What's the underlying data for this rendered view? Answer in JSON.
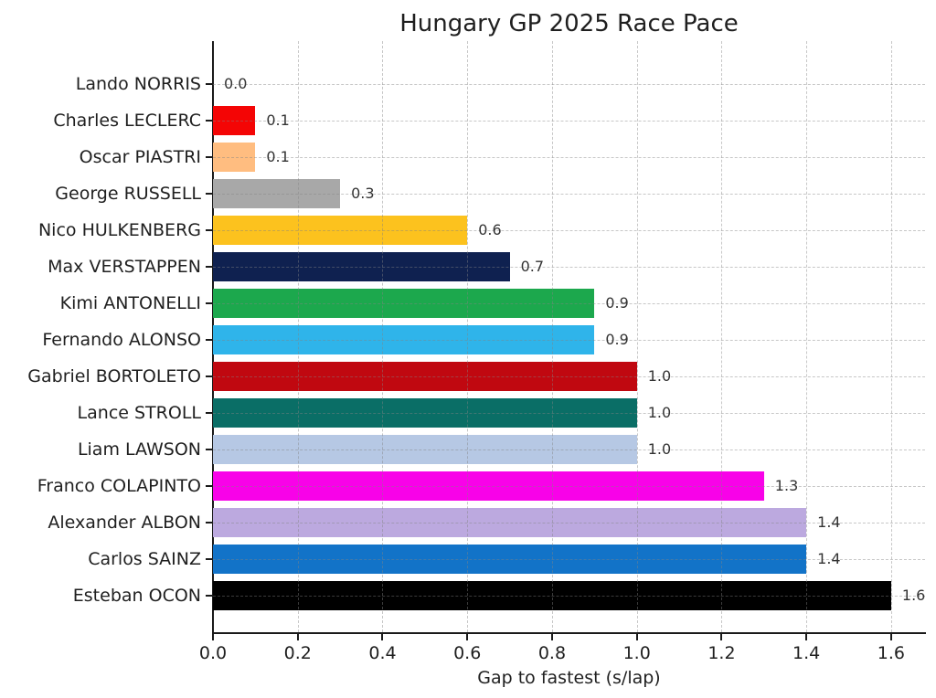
{
  "chart": {
    "title": "Hungary GP 2025 Race Pace",
    "xlabel": "Gap to fastest (s/lap)"
  },
  "chart_data": {
    "type": "bar",
    "orientation": "horizontal",
    "title": "Hungary GP 2025 Race Pace",
    "xlabel": "Gap to fastest (s/lap)",
    "ylabel": "",
    "xlim": [
      0,
      1.68
    ],
    "xticks": [
      0,
      0.2,
      0.4,
      0.6,
      0.8,
      1.0,
      1.2,
      1.4,
      1.6
    ],
    "xtick_labels": [
      "0.0",
      "0.2",
      "0.4",
      "0.6",
      "0.8",
      "1.0",
      "1.2",
      "1.4",
      "1.6"
    ],
    "grid": {
      "visible": true,
      "style": "dashed",
      "color": "rgba(130,130,130,0.45)",
      "axes": "both",
      "over_bars": true
    },
    "legend": null,
    "categories": [
      "Lando NORRIS",
      "Charles LECLERC",
      "Oscar PIASTRI",
      "George RUSSELL",
      "Nico HULKENBERG",
      "Max VERSTAPPEN",
      "Kimi ANTONELLI",
      "Fernando ALONSO",
      "Gabriel BORTOLETO",
      "Lance STROLL",
      "Liam LAWSON",
      "Franco COLAPINTO",
      "Alexander ALBON",
      "Carlos SAINZ",
      "Esteban OCON"
    ],
    "values": [
      0.0,
      0.1,
      0.1,
      0.3,
      0.6,
      0.7,
      0.9,
      0.9,
      1.0,
      1.0,
      1.0,
      1.3,
      1.4,
      1.4,
      1.6
    ],
    "value_labels": [
      "0.0",
      "0.1",
      "0.1",
      "0.3",
      "0.6",
      "0.7",
      "0.9",
      "0.9",
      "1.0",
      "1.0",
      "1.0",
      "1.3",
      "1.4",
      "1.4",
      "1.6"
    ],
    "bar_colors": [
      "#FF8000",
      "#F40505",
      "#FFBD80",
      "#A8A8A8",
      "#FCC21E",
      "#0F2150",
      "#1CA84D",
      "#2FB4EA",
      "#C00810",
      "#0A6E66",
      "#B6C8E4",
      "#F802E8",
      "#BCA9DF",
      "#1273C8",
      "#000000"
    ],
    "colors": {
      "background": "#ffffff",
      "axis": "#1a1a1a",
      "text": "#1f1f1f",
      "value_text": "#333333"
    }
  }
}
